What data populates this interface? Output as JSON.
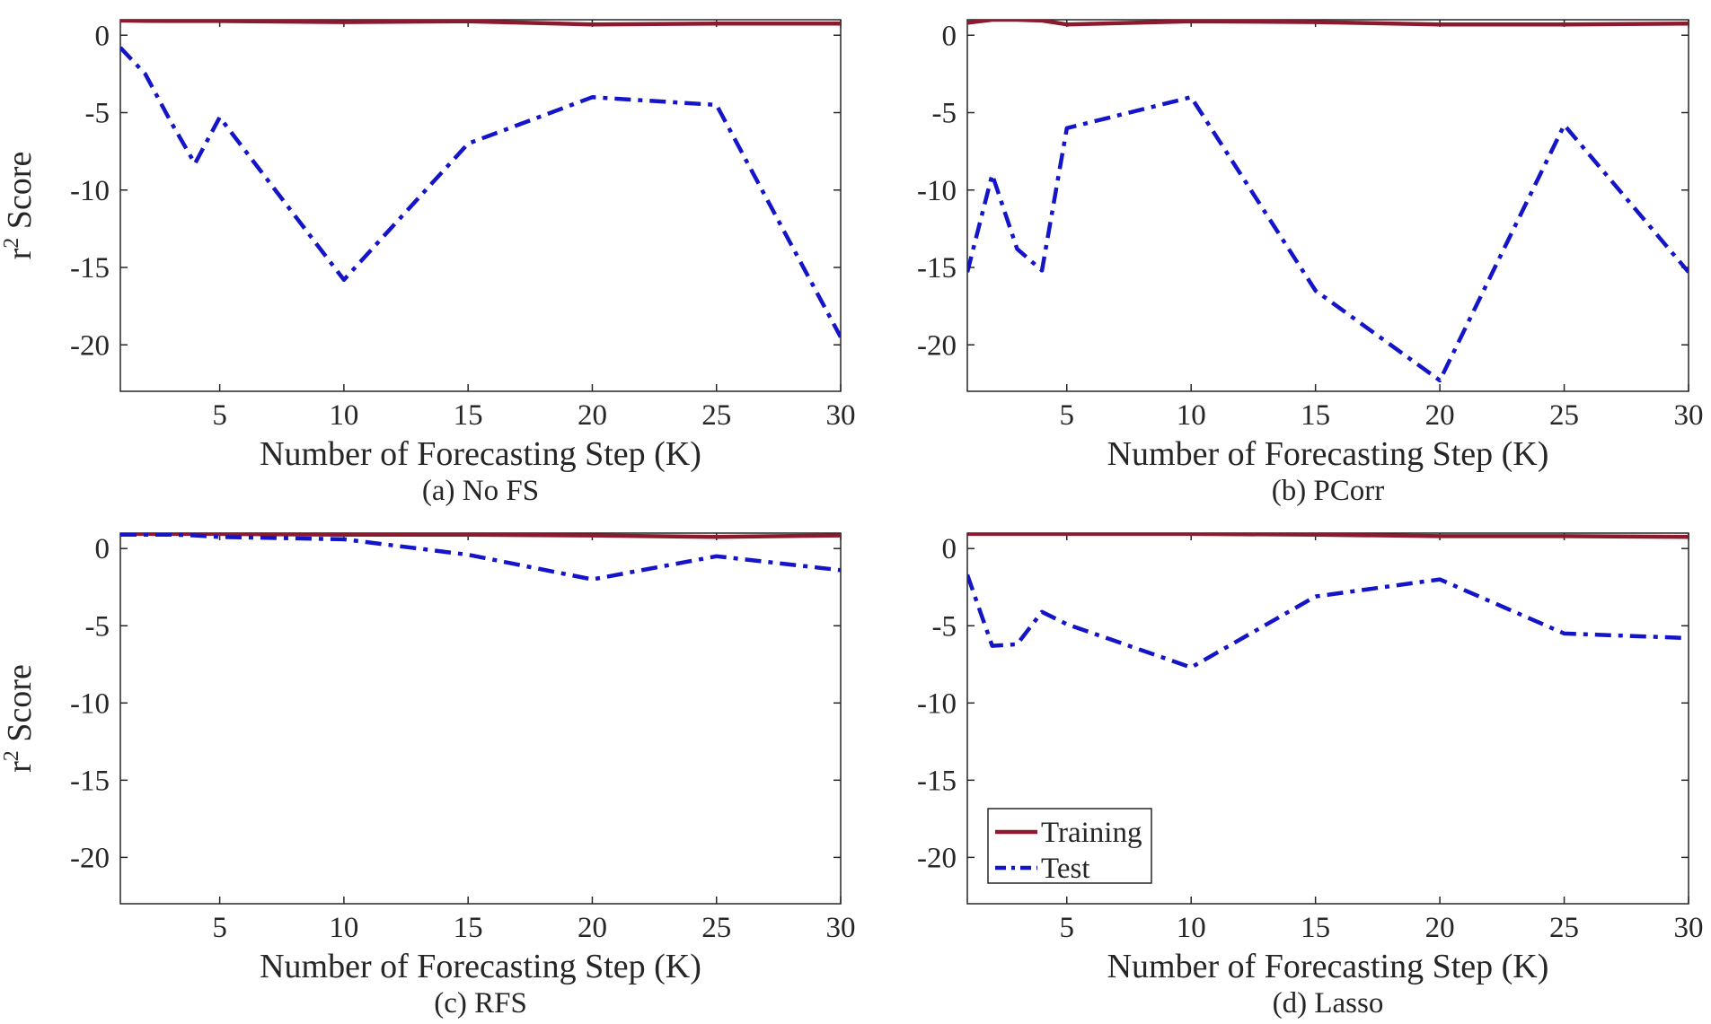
{
  "colors": {
    "training": "#8b1a2e",
    "test": "#1414c8",
    "axis": "#262626",
    "background": "#ffffff"
  },
  "legend": {
    "entries": [
      "Training",
      "Test"
    ],
    "placement": "lower-left of panel (d)"
  },
  "chart_data": [
    {
      "type": "line",
      "caption": "(a) No FS",
      "xlabel": "Number of Forecasting Step (K)",
      "ylabel": "r² Score",
      "ylabel_base": "r",
      "ylabel_sup": "2",
      "ylabel_rest": " Score",
      "xlim": [
        1,
        30
      ],
      "ylim": [
        -23,
        1
      ],
      "xticks": [
        5,
        10,
        15,
        20,
        25,
        30
      ],
      "yticks": [
        0,
        -5,
        -10,
        -15,
        -20
      ],
      "grid": false,
      "series": [
        {
          "name": "Training",
          "style": "solid",
          "x": [
            1,
            2,
            3,
            4,
            5,
            10,
            15,
            20,
            25,
            30
          ],
          "y": [
            0.95,
            0.93,
            0.92,
            0.92,
            0.92,
            0.85,
            0.9,
            0.7,
            0.75,
            0.75
          ]
        },
        {
          "name": "Test",
          "style": "dashdot",
          "x": [
            1,
            2,
            3,
            4,
            5,
            10,
            15,
            20,
            25,
            30
          ],
          "y": [
            -0.8,
            -2.5,
            -5.5,
            -8.3,
            -5.3,
            -15.8,
            -7.0,
            -4.0,
            -4.5,
            -19.5
          ]
        }
      ]
    },
    {
      "type": "line",
      "caption": "(b) PCorr",
      "xlabel": "Number of Forecasting Step (K)",
      "ylabel": "",
      "xlim": [
        1,
        30
      ],
      "ylim": [
        -23,
        1
      ],
      "xticks": [
        5,
        10,
        15,
        20,
        25,
        30
      ],
      "yticks": [
        0,
        -5,
        -10,
        -15,
        -20
      ],
      "grid": false,
      "series": [
        {
          "name": "Training",
          "style": "solid",
          "x": [
            1,
            2,
            3,
            4,
            5,
            10,
            15,
            20,
            25,
            30
          ],
          "y": [
            0.8,
            1.0,
            1.0,
            0.95,
            0.7,
            0.9,
            0.85,
            0.7,
            0.7,
            0.75
          ]
        },
        {
          "name": "Test",
          "style": "dashdot",
          "x": [
            1,
            2,
            3,
            4,
            5,
            10,
            15,
            20,
            25,
            30
          ],
          "y": [
            -15.3,
            -9.0,
            -13.8,
            -15.2,
            -6.0,
            -4.0,
            -16.5,
            -22.3,
            -5.8,
            -15.3
          ]
        }
      ]
    },
    {
      "type": "line",
      "caption": "(c) RFS",
      "xlabel": "Number of Forecasting Step (K)",
      "ylabel": "r² Score",
      "ylabel_base": "r",
      "ylabel_sup": "2",
      "ylabel_rest": " Score",
      "xlim": [
        1,
        30
      ],
      "ylim": [
        -23,
        1
      ],
      "xticks": [
        5,
        10,
        15,
        20,
        25,
        30
      ],
      "yticks": [
        0,
        -5,
        -10,
        -15,
        -20
      ],
      "grid": false,
      "series": [
        {
          "name": "Training",
          "style": "solid",
          "x": [
            1,
            2,
            3,
            4,
            5,
            10,
            15,
            20,
            25,
            30
          ],
          "y": [
            0.95,
            0.95,
            0.95,
            0.95,
            0.95,
            0.9,
            0.9,
            0.85,
            0.75,
            0.85
          ]
        },
        {
          "name": "Test",
          "style": "dashdot",
          "x": [
            1,
            2,
            3,
            4,
            5,
            10,
            15,
            20,
            25,
            30
          ],
          "y": [
            0.9,
            0.9,
            0.9,
            0.85,
            0.75,
            0.6,
            -0.4,
            -2.0,
            -0.5,
            -1.4
          ]
        }
      ]
    },
    {
      "type": "line",
      "caption": "(d) Lasso",
      "xlabel": "Number of Forecasting Step (K)",
      "ylabel": "",
      "xlim": [
        1,
        30
      ],
      "ylim": [
        -23,
        1
      ],
      "xticks": [
        5,
        10,
        15,
        20,
        25,
        30
      ],
      "yticks": [
        0,
        -5,
        -10,
        -15,
        -20
      ],
      "grid": false,
      "series": [
        {
          "name": "Training",
          "style": "solid",
          "x": [
            1,
            2,
            3,
            4,
            5,
            10,
            15,
            20,
            25,
            30
          ],
          "y": [
            0.95,
            0.95,
            0.95,
            0.95,
            0.95,
            0.95,
            0.9,
            0.8,
            0.8,
            0.75
          ]
        },
        {
          "name": "Test",
          "style": "dashdot",
          "x": [
            1,
            2,
            3,
            4,
            5,
            10,
            15,
            20,
            25,
            30
          ],
          "y": [
            -1.7,
            -6.3,
            -6.2,
            -4.1,
            -4.9,
            -7.7,
            -3.1,
            -2.0,
            -5.5,
            -5.8
          ]
        }
      ]
    }
  ]
}
